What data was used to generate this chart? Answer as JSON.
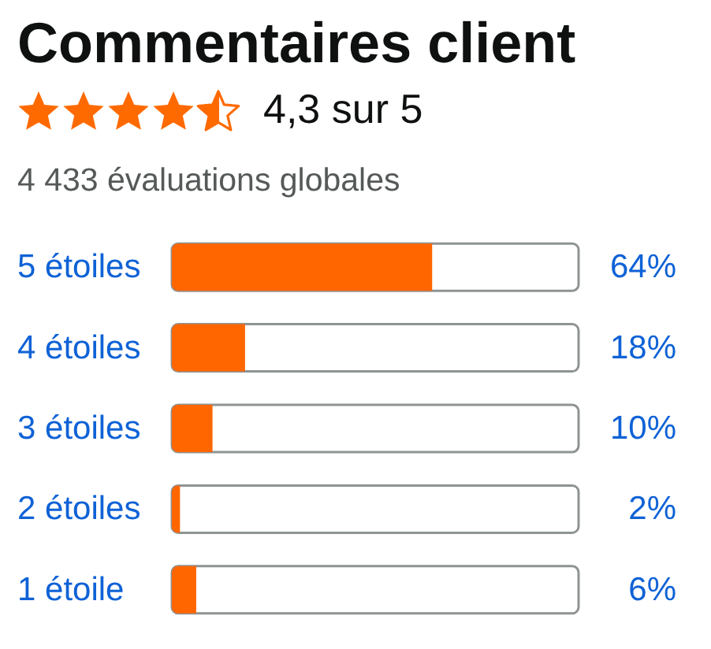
{
  "chart_data": {
    "type": "bar",
    "orientation": "horizontal",
    "title": "Commentaires client",
    "subtitle": "4,3 sur 5",
    "annotations": [
      "4 433 évaluations globales"
    ],
    "categories": [
      "5 étoiles",
      "4 étoiles",
      "3 étoiles",
      "2 étoiles",
      "1 étoile"
    ],
    "values": [
      64,
      18,
      10,
      2,
      6
    ],
    "color": "#ff6600",
    "value_labels": [
      "64%",
      "18%",
      "10%",
      "2%",
      "6%"
    ],
    "xlim": [
      0,
      100
    ],
    "tick_labels": "y",
    "grid": false
  }
}
